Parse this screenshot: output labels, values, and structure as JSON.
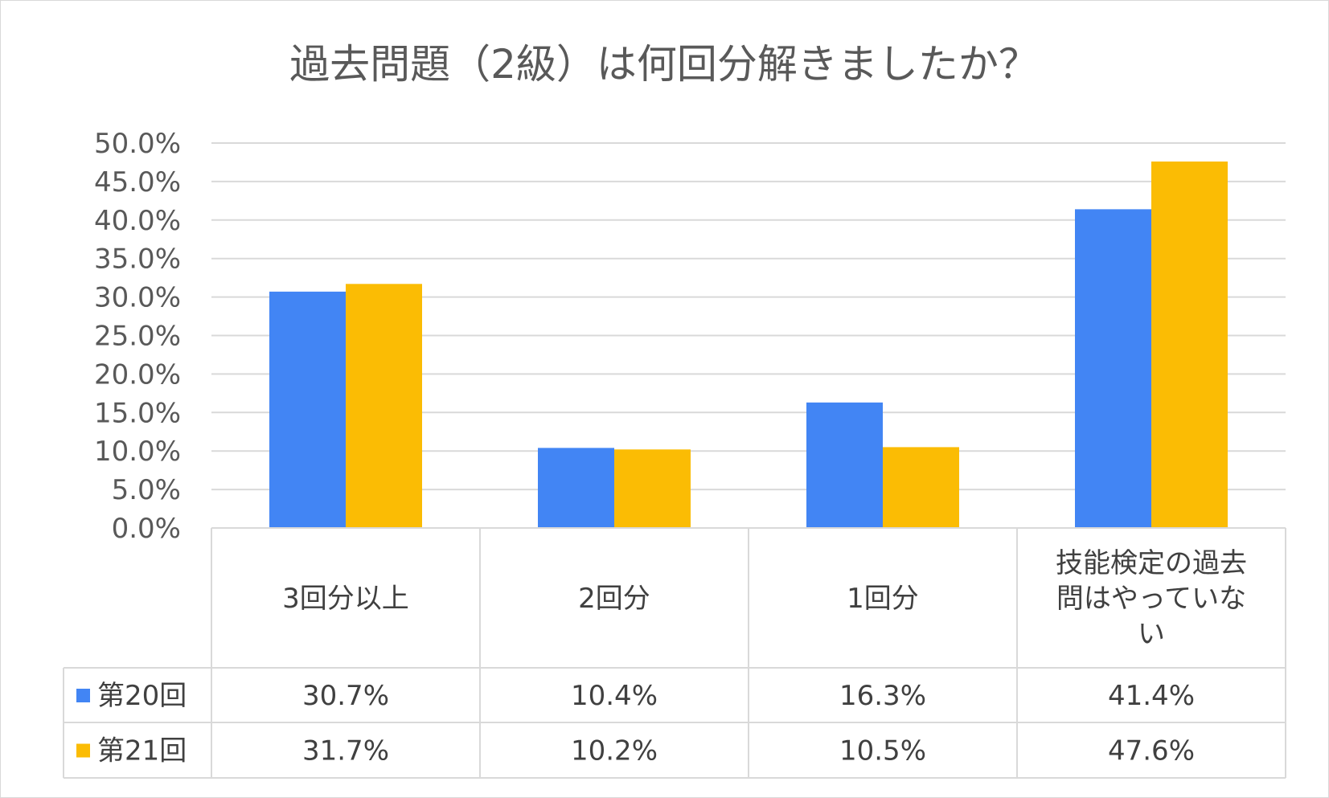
{
  "chart_data": {
    "type": "bar",
    "title": "過去問題（2級）は何回分解きましたか？",
    "categories": [
      "3回分以上",
      "2回分",
      "1回分",
      "技能検定の過去問はやっていない"
    ],
    "category_lines": [
      [
        "3回分以上"
      ],
      [
        "2回分"
      ],
      [
        "1回分"
      ],
      [
        "技能検定の過去",
        "問はやっていな",
        "い"
      ]
    ],
    "series": [
      {
        "name": "第20回",
        "color": "#4285f4",
        "values": [
          30.7,
          10.4,
          16.3,
          41.4
        ],
        "labels": [
          "30.7%",
          "10.4%",
          "16.3%",
          "41.4%"
        ]
      },
      {
        "name": "第21回",
        "color": "#fbbc04",
        "values": [
          31.7,
          10.2,
          10.5,
          47.6
        ],
        "labels": [
          "31.7%",
          "10.2%",
          "10.5%",
          "47.6%"
        ]
      }
    ],
    "ylim": [
      0,
      50
    ],
    "yticks": [
      "0.0%",
      "5.0%",
      "10.0%",
      "15.0%",
      "20.0%",
      "25.0%",
      "30.0%",
      "35.0%",
      "40.0%",
      "45.0%",
      "50.0%"
    ],
    "grid": true,
    "legend": "data-table"
  }
}
